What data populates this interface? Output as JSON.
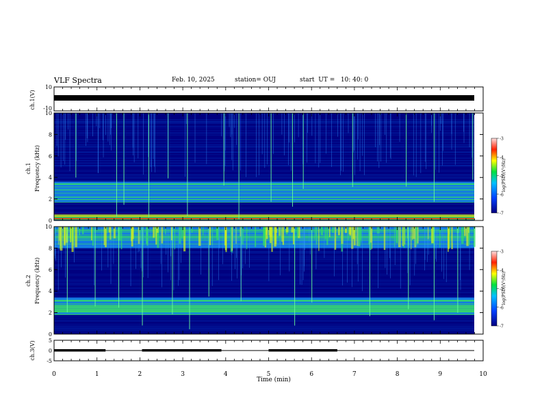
{
  "header": {
    "title": "VLF Spectra",
    "date": "Feb. 10, 2025",
    "station": "station= OUJ",
    "start_ut": "start  UT =   10: 40: 0"
  },
  "colors": {
    "background": "#000080",
    "low": "#0033aa",
    "mid": "#1a8cff",
    "high": "#33dd66",
    "peak": "#ccee22",
    "line_red": "#ff2200",
    "line_yellow": "#ffee00"
  },
  "chart_data": [
    {
      "type": "line",
      "id": "ch1-voltage",
      "ylabel": "ch.1(V)",
      "ylim": [
        -10,
        10
      ],
      "ytick_labels": [
        "10",
        "-10"
      ],
      "series": [
        {
          "values_approx": [
            3.5,
            -3.5
          ]
        }
      ]
    },
    {
      "type": "heatmap",
      "id": "ch1-spectrogram",
      "ylabel_top": "ch.1",
      "ylabel": "Frequency  (kHz)",
      "ylim": [
        0,
        10
      ],
      "ytick_labels": [
        "0",
        "2",
        "4",
        "6",
        "8",
        "10"
      ],
      "colorbar": {
        "label": "log(PSD)(V²/Hz)",
        "range": [
          -7,
          -3
        ],
        "tick_labels": [
          "-7",
          "-6",
          "-5",
          "-4",
          "-3"
        ]
      },
      "bands": [
        {
          "freq_khz": [
            1.7,
            3.6
          ],
          "level": -5.5
        },
        {
          "freq_khz": [
            0.1,
            0.6
          ],
          "level": -3.5
        }
      ],
      "spherics_minutes": [
        0.5,
        1.45,
        1.62,
        2.2,
        2.65,
        3.1,
        3.95,
        4.3,
        5.05,
        5.55,
        5.8,
        6.95,
        8.2,
        8.85,
        9.75
      ]
    },
    {
      "type": "heatmap",
      "id": "ch2-spectrogram",
      "ylabel_top": "ch.2",
      "ylabel": "Frequency  (kHz)",
      "ylim": [
        0,
        10
      ],
      "ytick_labels": [
        "0",
        "2",
        "4",
        "6",
        "8",
        "10"
      ],
      "colorbar": {
        "label": "log(PSD)(V²/Hz)",
        "range": [
          -7,
          -3
        ],
        "tick_labels": [
          "-7",
          "-6",
          "-5",
          "-4",
          "-3"
        ]
      },
      "bands": [
        {
          "freq_khz": [
            1.8,
            3.4
          ],
          "level": -5.0
        },
        {
          "freq_khz": [
            8.0,
            10.0
          ],
          "level": -5.0
        }
      ],
      "spherics_minutes": [
        0.3,
        0.95,
        1.5,
        2.05,
        2.75,
        3.15,
        3.6,
        4.35,
        5.6,
        6.0,
        7.35,
        8.25,
        8.85,
        9.4
      ]
    },
    {
      "type": "line",
      "id": "ch3-voltage",
      "ylabel": "ch.3(V)",
      "ylim": [
        -5,
        5
      ],
      "ytick_labels": [
        "5",
        "0",
        "-5"
      ],
      "xlabel": "Time  (min)",
      "xlim": [
        0,
        10
      ],
      "xtick_labels": [
        "0",
        "1",
        "2",
        "3",
        "4",
        "5",
        "6",
        "7",
        "8",
        "9",
        "10"
      ],
      "series": [
        {
          "baseline_v": 0
        }
      ],
      "thick_segments_min": [
        [
          0,
          1.2
        ],
        [
          2.05,
          3.9
        ],
        [
          5.0,
          6.6
        ]
      ]
    }
  ]
}
